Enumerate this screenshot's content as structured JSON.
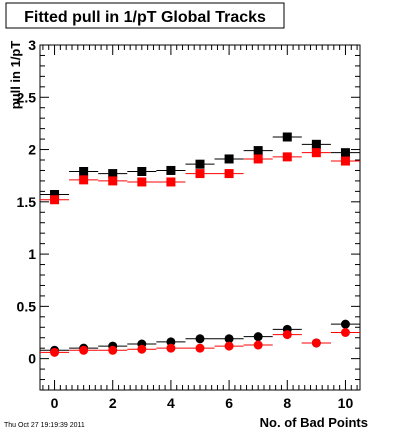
{
  "chart_data": {
    "type": "scatter",
    "title": "Fitted pull in 1/pT  Global Tracks",
    "xlabel": "No. of Bad Points",
    "ylabel": "pull in 1/pT",
    "xlim": [
      -0.5,
      10.5
    ],
    "ylim": [
      -0.3,
      3.0
    ],
    "x_ticks": [
      0,
      2,
      4,
      6,
      8,
      10
    ],
    "x_tick_labels": [
      "0",
      "2",
      "4",
      "6",
      "8",
      "10"
    ],
    "y_ticks": [
      0,
      0.5,
      1,
      1.5,
      2,
      2.5,
      3
    ],
    "y_tick_labels": [
      "0",
      "0.5",
      "1",
      "1.5",
      "2",
      "2.5",
      "3"
    ],
    "grid": false,
    "legend": "none",
    "series": [
      {
        "marker": "square",
        "color": "#000000",
        "x": [
          0,
          1,
          2,
          3,
          4,
          5,
          6,
          7,
          8,
          9,
          10
        ],
        "y": [
          1.57,
          1.79,
          1.77,
          1.79,
          1.8,
          1.86,
          1.91,
          1.99,
          2.12,
          2.05,
          1.97
        ],
        "yerr": [
          0.02,
          0.02,
          0.02,
          0.02,
          0.02,
          0.02,
          0.02,
          0.02,
          0.03,
          0.03,
          0.04
        ]
      },
      {
        "marker": "square",
        "color": "#ff0000",
        "x": [
          0,
          1,
          2,
          3,
          4,
          5,
          6,
          7,
          8,
          9,
          10
        ],
        "y": [
          1.52,
          1.71,
          1.7,
          1.69,
          1.69,
          1.77,
          1.77,
          1.91,
          1.93,
          1.97,
          1.89
        ],
        "yerr": [
          0.02,
          0.02,
          0.02,
          0.02,
          0.02,
          0.02,
          0.02,
          0.02,
          0.02,
          0.03,
          0.04
        ]
      },
      {
        "marker": "circle",
        "color": "#000000",
        "x": [
          0,
          1,
          2,
          3,
          4,
          5,
          6,
          7,
          8,
          9,
          10
        ],
        "y": [
          0.08,
          0.1,
          0.12,
          0.14,
          0.16,
          0.19,
          0.19,
          0.21,
          0.28,
          0.15,
          0.33
        ],
        "yerr": [
          0.01,
          0.01,
          0.01,
          0.01,
          0.01,
          0.01,
          0.01,
          0.01,
          0.01,
          0.01,
          0.02
        ]
      },
      {
        "marker": "circle",
        "color": "#ff0000",
        "x": [
          0,
          1,
          2,
          3,
          4,
          5,
          6,
          7,
          8,
          9,
          10
        ],
        "y": [
          0.06,
          0.08,
          0.08,
          0.09,
          0.1,
          0.1,
          0.12,
          0.13,
          0.23,
          0.15,
          0.25
        ],
        "yerr": [
          0.01,
          0.01,
          0.01,
          0.01,
          0.01,
          0.01,
          0.01,
          0.01,
          0.01,
          0.01,
          0.02
        ]
      }
    ]
  },
  "footer": {
    "timestamp": "Thu Oct 27 19:19:39 2011"
  }
}
